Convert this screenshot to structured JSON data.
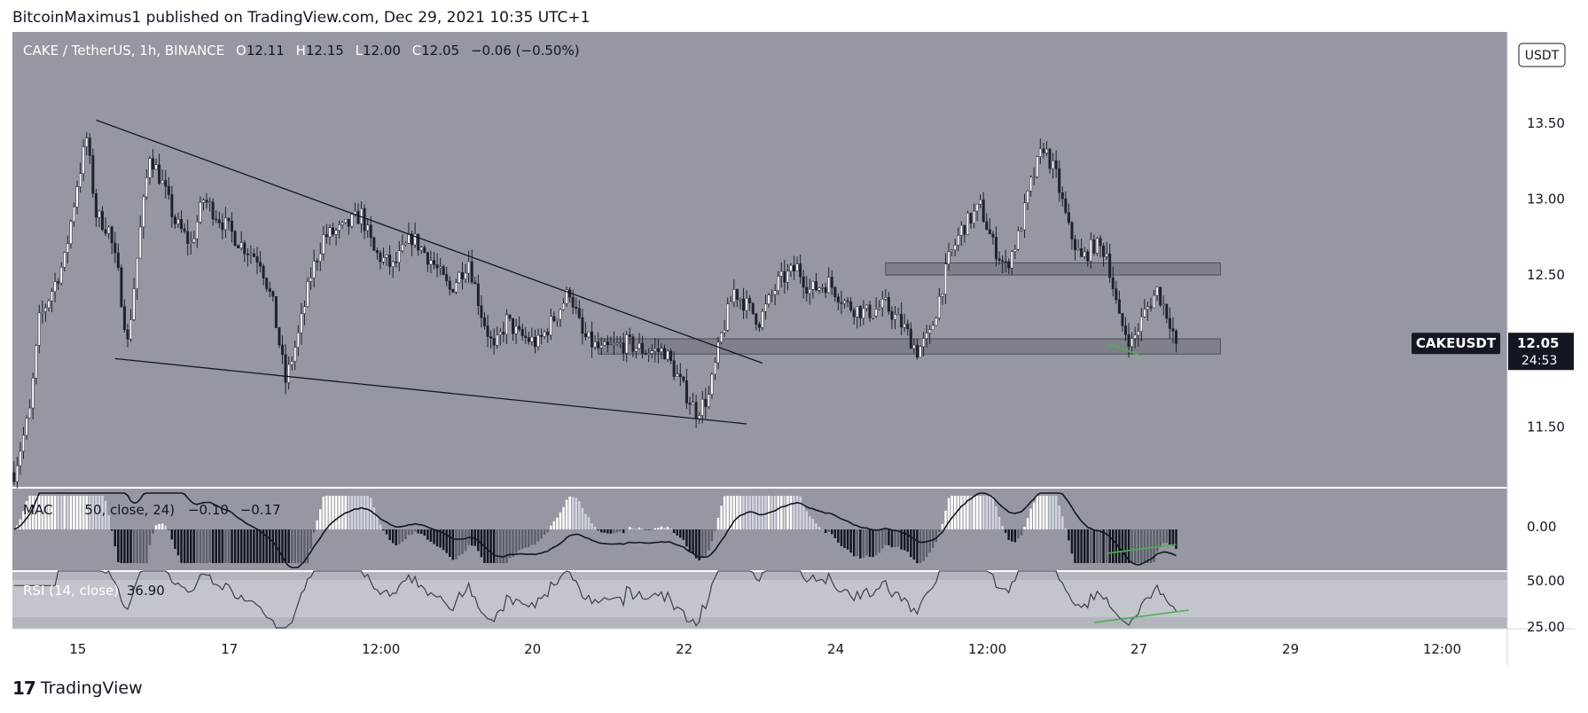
{
  "header": {
    "author_line": "BitcoinMaximus1 published on TradingView.com, Dec 29, 2021 10:35 UTC+1"
  },
  "footer": {
    "brand": "TradingView",
    "logo_icon": "tradingview-logo-icon"
  },
  "colors": {
    "price_bg": "#9598a1",
    "rsi_bg": "#b2b5be",
    "rsi_band": "#c3c6cd",
    "frame": "#ffffff",
    "candle_up": "#ffffff",
    "candle_down": "#1e222d",
    "divergence": "#4caf50",
    "price_tag": "#131722"
  },
  "chart_data": {
    "type": "candlestick",
    "symbol_line": {
      "symbol": "CAKE / TetherUS, 1h, BINANCE",
      "o_label": "O",
      "o_value": "12.11",
      "h_label": "H",
      "h_value": "12.15",
      "l_label": "L",
      "l_value": "12.00",
      "c_label": "C",
      "c_value": "12.05",
      "change": "−0.06 (−0.50%)"
    },
    "currency_badge": "USDT",
    "price_axis": {
      "ticks": [
        "13.50",
        "13.00",
        "12.50",
        "12.00",
        "11.50"
      ],
      "tick_values": [
        13.5,
        13.0,
        12.5,
        12.0,
        11.5
      ],
      "ylim": [
        11.1,
        14.1
      ]
    },
    "time_axis": {
      "labels": [
        "15",
        "17",
        "12:00",
        "20",
        "22",
        "24",
        "12:00",
        "27",
        "29",
        "12:00"
      ],
      "label_positions_bar": [
        0,
        48,
        96,
        144,
        192,
        240,
        288,
        336,
        384,
        432
      ],
      "total_bars": 470
    },
    "price_tag": {
      "label": "CAKEUSDT",
      "price": "12.05",
      "countdown": "24:53",
      "value": 12.05
    },
    "series": [
      {
        "kind": "ohlc_path",
        "keypoints": [
          [
            0,
            11.2
          ],
          [
            5,
            11.6
          ],
          [
            8,
            12.2
          ],
          [
            12,
            12.4
          ],
          [
            16,
            12.6
          ],
          [
            20,
            13.1
          ],
          [
            23,
            13.4
          ],
          [
            26,
            12.9
          ],
          [
            30,
            12.8
          ],
          [
            33,
            12.5
          ],
          [
            36,
            12.05
          ],
          [
            40,
            12.8
          ],
          [
            43,
            13.3
          ],
          [
            47,
            13.1
          ],
          [
            51,
            12.85
          ],
          [
            56,
            12.7
          ],
          [
            60,
            13.0
          ],
          [
            66,
            12.85
          ],
          [
            72,
            12.7
          ],
          [
            78,
            12.6
          ],
          [
            82,
            12.3
          ],
          [
            86,
            11.8
          ],
          [
            90,
            12.1
          ],
          [
            94,
            12.5
          ],
          [
            98,
            12.75
          ],
          [
            104,
            12.8
          ],
          [
            110,
            12.9
          ],
          [
            114,
            12.65
          ],
          [
            120,
            12.55
          ],
          [
            126,
            12.75
          ],
          [
            132,
            12.6
          ],
          [
            138,
            12.4
          ],
          [
            144,
            12.6
          ],
          [
            148,
            12.25
          ],
          [
            152,
            12.0
          ],
          [
            156,
            12.2
          ],
          [
            160,
            12.1
          ],
          [
            166,
            12.05
          ],
          [
            172,
            12.25
          ],
          [
            176,
            12.4
          ],
          [
            180,
            12.1
          ],
          [
            186,
            12.0
          ],
          [
            194,
            12.05
          ],
          [
            200,
            12.0
          ],
          [
            206,
            12.0
          ],
          [
            212,
            11.75
          ],
          [
            216,
            11.6
          ],
          [
            220,
            11.7
          ],
          [
            224,
            12.1
          ],
          [
            228,
            12.4
          ],
          [
            232,
            12.3
          ],
          [
            236,
            12.2
          ],
          [
            242,
            12.45
          ],
          [
            248,
            12.55
          ],
          [
            252,
            12.4
          ],
          [
            258,
            12.45
          ],
          [
            264,
            12.3
          ],
          [
            270,
            12.25
          ],
          [
            276,
            12.3
          ],
          [
            282,
            12.15
          ],
          [
            286,
            12.0
          ],
          [
            290,
            12.1
          ],
          [
            296,
            12.6
          ],
          [
            300,
            12.8
          ],
          [
            306,
            12.95
          ],
          [
            310,
            12.7
          ],
          [
            314,
            12.55
          ],
          [
            318,
            12.75
          ],
          [
            322,
            13.1
          ],
          [
            326,
            13.35
          ],
          [
            330,
            13.15
          ],
          [
            334,
            12.8
          ],
          [
            338,
            12.6
          ],
          [
            342,
            12.7
          ],
          [
            346,
            12.65
          ],
          [
            350,
            12.2
          ],
          [
            354,
            12.05
          ],
          [
            358,
            12.25
          ],
          [
            362,
            12.4
          ],
          [
            366,
            12.2
          ],
          [
            368,
            12.05
          ]
        ],
        "last_close": 12.05
      }
    ],
    "annotations": {
      "descending_trendline": {
        "from": [
          26,
          13.52
        ],
        "to": [
          237,
          11.92
        ]
      },
      "lower_trendline": {
        "from": [
          32,
          11.95
        ],
        "to": [
          232,
          11.52
        ]
      },
      "support_box_upper": {
        "bar_from": 276,
        "bar_to": 382,
        "high": 12.58,
        "low": 12.5
      },
      "support_box_lower": {
        "bar_from": 185,
        "bar_to": 382,
        "high": 12.08,
        "low": 11.98
      },
      "price_divergence": {
        "from": [
          346,
          12.05
        ],
        "to": [
          357,
          11.97
        ]
      }
    },
    "macd": {
      "label": "MACD (…, 50, close, 24)",
      "label_prefix": "MAC",
      "params": "50, close, 24)",
      "values": [
        "−0.10",
        "−0.17"
      ],
      "axis_tick": "0.00",
      "ylim": [
        -0.3,
        0.3
      ]
    },
    "rsi": {
      "label": "RSI (14, close)",
      "value": "36.90",
      "ticks": [
        "50.00",
        "25.00"
      ],
      "tick_values": [
        50,
        25
      ],
      "ylim": [
        20,
        60
      ],
      "band": [
        30,
        50
      ]
    }
  }
}
